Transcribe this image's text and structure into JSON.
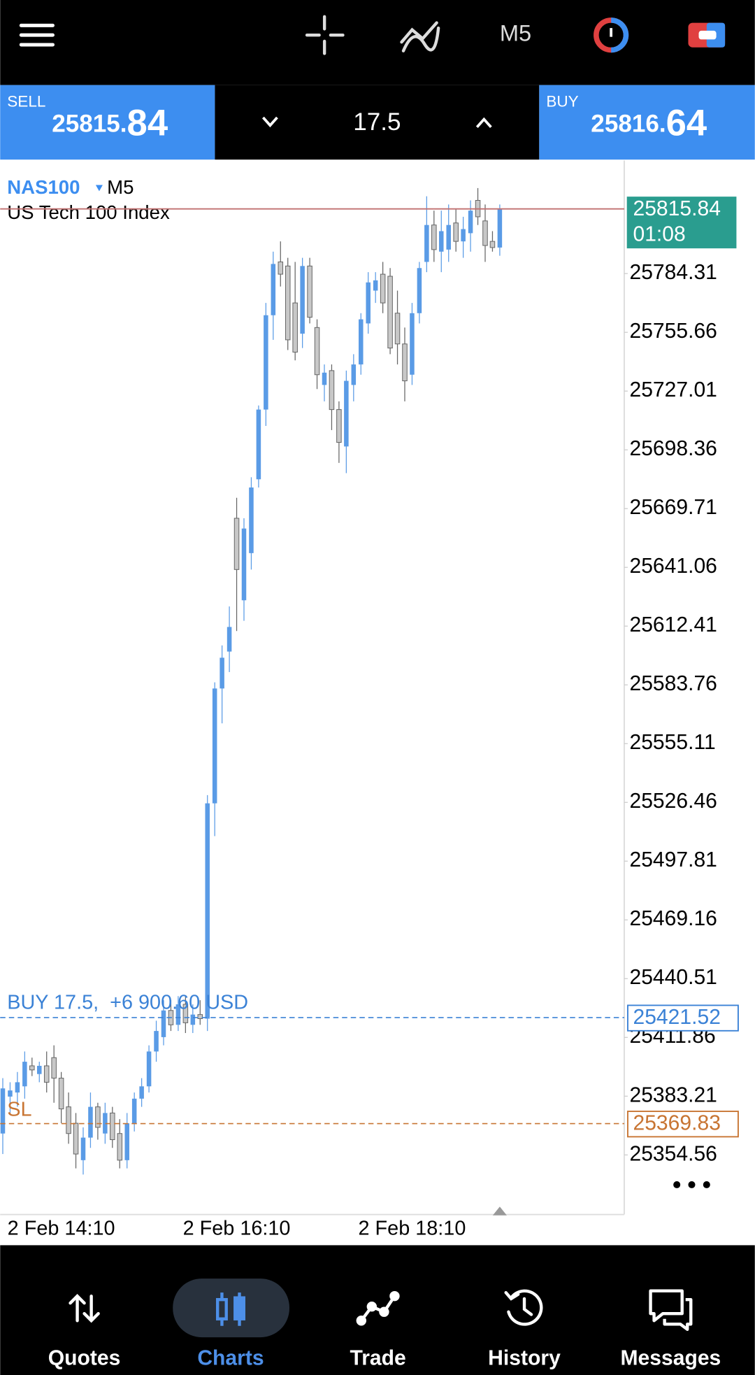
{
  "header": {
    "timeframe": "M5"
  },
  "trade_panel": {
    "sell_label": "SELL",
    "sell_price_main": "25815.",
    "sell_price_big": "84",
    "lot": "17.5",
    "buy_label": "BUY",
    "buy_price_main": "25816.",
    "buy_price_big": "64"
  },
  "chart_data": {
    "type": "candlestick",
    "symbol": "NAS100",
    "timeframe": "M5",
    "description": "US Tech 100 Index",
    "categories": [
      null,
      null,
      null,
      null,
      null,
      null,
      null,
      null,
      "2 Feb 14:10",
      null,
      null,
      null,
      null,
      null,
      null,
      null,
      null,
      null,
      null,
      null,
      null,
      null,
      null,
      null,
      null,
      null,
      null,
      null,
      null,
      null,
      null,
      null,
      "2 Feb 16:10",
      null,
      null,
      null,
      null,
      null,
      null,
      null,
      null,
      null,
      null,
      null,
      null,
      null,
      null,
      null,
      null,
      null,
      null,
      null,
      null,
      null,
      null,
      null,
      "2 Feb 18:10",
      null,
      null,
      null,
      null,
      null,
      null,
      null,
      null,
      null,
      null,
      null,
      null
    ],
    "open": [
      25365,
      25383,
      25385,
      25388,
      25398,
      25394,
      25398,
      25402,
      25392,
      25378,
      25370,
      25352,
      25363,
      25378,
      25365,
      25375,
      25365,
      25352,
      25370,
      25382,
      25388,
      25405,
      25412,
      25425,
      25418,
      25428,
      25418,
      25423,
      25421,
      25526,
      25582,
      25600,
      25665,
      25625,
      25648,
      25684,
      25718,
      25764,
      25790,
      25788,
      25770,
      25755,
      25788,
      25758,
      25730,
      25737,
      25718,
      25700,
      25730,
      25740,
      25760,
      25776,
      25784,
      25783,
      25765,
      25750,
      25735,
      25765,
      25790,
      25808,
      25795,
      25796,
      25809,
      25800,
      25804,
      25820,
      25810,
      25800,
      25797
    ],
    "high": [
      25392,
      25390,
      25395,
      25405,
      25402,
      25400,
      25405,
      25408,
      25395,
      25385,
      25375,
      25368,
      25385,
      25380,
      25380,
      25378,
      25372,
      25375,
      25385,
      25392,
      25408,
      25420,
      25430,
      25430,
      25432,
      25432,
      25428,
      25430,
      25530,
      25585,
      25603,
      25622,
      25675,
      25665,
      25685,
      25720,
      25770,
      25795,
      25800,
      25792,
      25790,
      25792,
      25792,
      25762,
      25740,
      25740,
      25722,
      25737,
      25745,
      25765,
      25785,
      25785,
      25790,
      25787,
      25776,
      25758,
      25770,
      25790,
      25822,
      25815,
      25815,
      25818,
      25816,
      25812,
      25820,
      25826,
      25818,
      25805,
      25818
    ],
    "low": [
      25355,
      25375,
      25378,
      25382,
      25393,
      25390,
      25385,
      25380,
      25370,
      25360,
      25348,
      25345,
      25358,
      25362,
      25360,
      25358,
      25348,
      25348,
      25366,
      25378,
      25385,
      25400,
      25408,
      25415,
      25415,
      25414,
      25414,
      25418,
      25415,
      25510,
      25565,
      25590,
      25610,
      25615,
      25640,
      25680,
      25710,
      25752,
      25778,
      25747,
      25742,
      25748,
      25760,
      25728,
      25722,
      25708,
      25692,
      25687,
      25722,
      25735,
      25755,
      25770,
      25765,
      25745,
      25740,
      25722,
      25730,
      25760,
      25785,
      25790,
      25785,
      25790,
      25795,
      25792,
      25795,
      25808,
      25790,
      25795,
      25793
    ],
    "close": [
      25387,
      25386,
      25390,
      25400,
      25396,
      25398,
      25390,
      25392,
      25377,
      25365,
      25355,
      25363,
      25378,
      25368,
      25375,
      25362,
      25352,
      25370,
      25382,
      25388,
      25405,
      25415,
      25425,
      25418,
      25428,
      25419,
      25423,
      25421,
      25526,
      25582,
      25597,
      25612,
      25640,
      25660,
      25680,
      25718,
      25764,
      25789,
      25784,
      25752,
      25746,
      25788,
      25763,
      25735,
      25736,
      25718,
      25702,
      25732,
      25740,
      25762,
      25780,
      25781,
      25770,
      25748,
      25750,
      25732,
      25765,
      25787,
      25808,
      25796,
      25805,
      25808,
      25800,
      25806,
      25815,
      25812,
      25798,
      25797,
      25815.84
    ],
    "up_color": "#5a9be6",
    "down_color": "#c8c8c8",
    "ylim": [
      25325.5,
      25838.6
    ],
    "yticks": [
      25784.31,
      25755.66,
      25727.01,
      25698.36,
      25669.71,
      25641.06,
      25612.41,
      25583.76,
      25555.11,
      25526.46,
      25497.81,
      25469.16,
      25440.51,
      25411.86,
      25383.21,
      25354.56
    ],
    "current_price": 25815.84,
    "countdown": "01:08",
    "position": {
      "label": "BUY 17.5,  +6 900.60 USD",
      "price": 25421.52
    },
    "stop_loss": {
      "label": "SL",
      "price": 25369.83
    }
  },
  "nav": {
    "items": [
      "Quotes",
      "Charts",
      "Trade",
      "History",
      "Messages"
    ],
    "active": "Charts"
  }
}
